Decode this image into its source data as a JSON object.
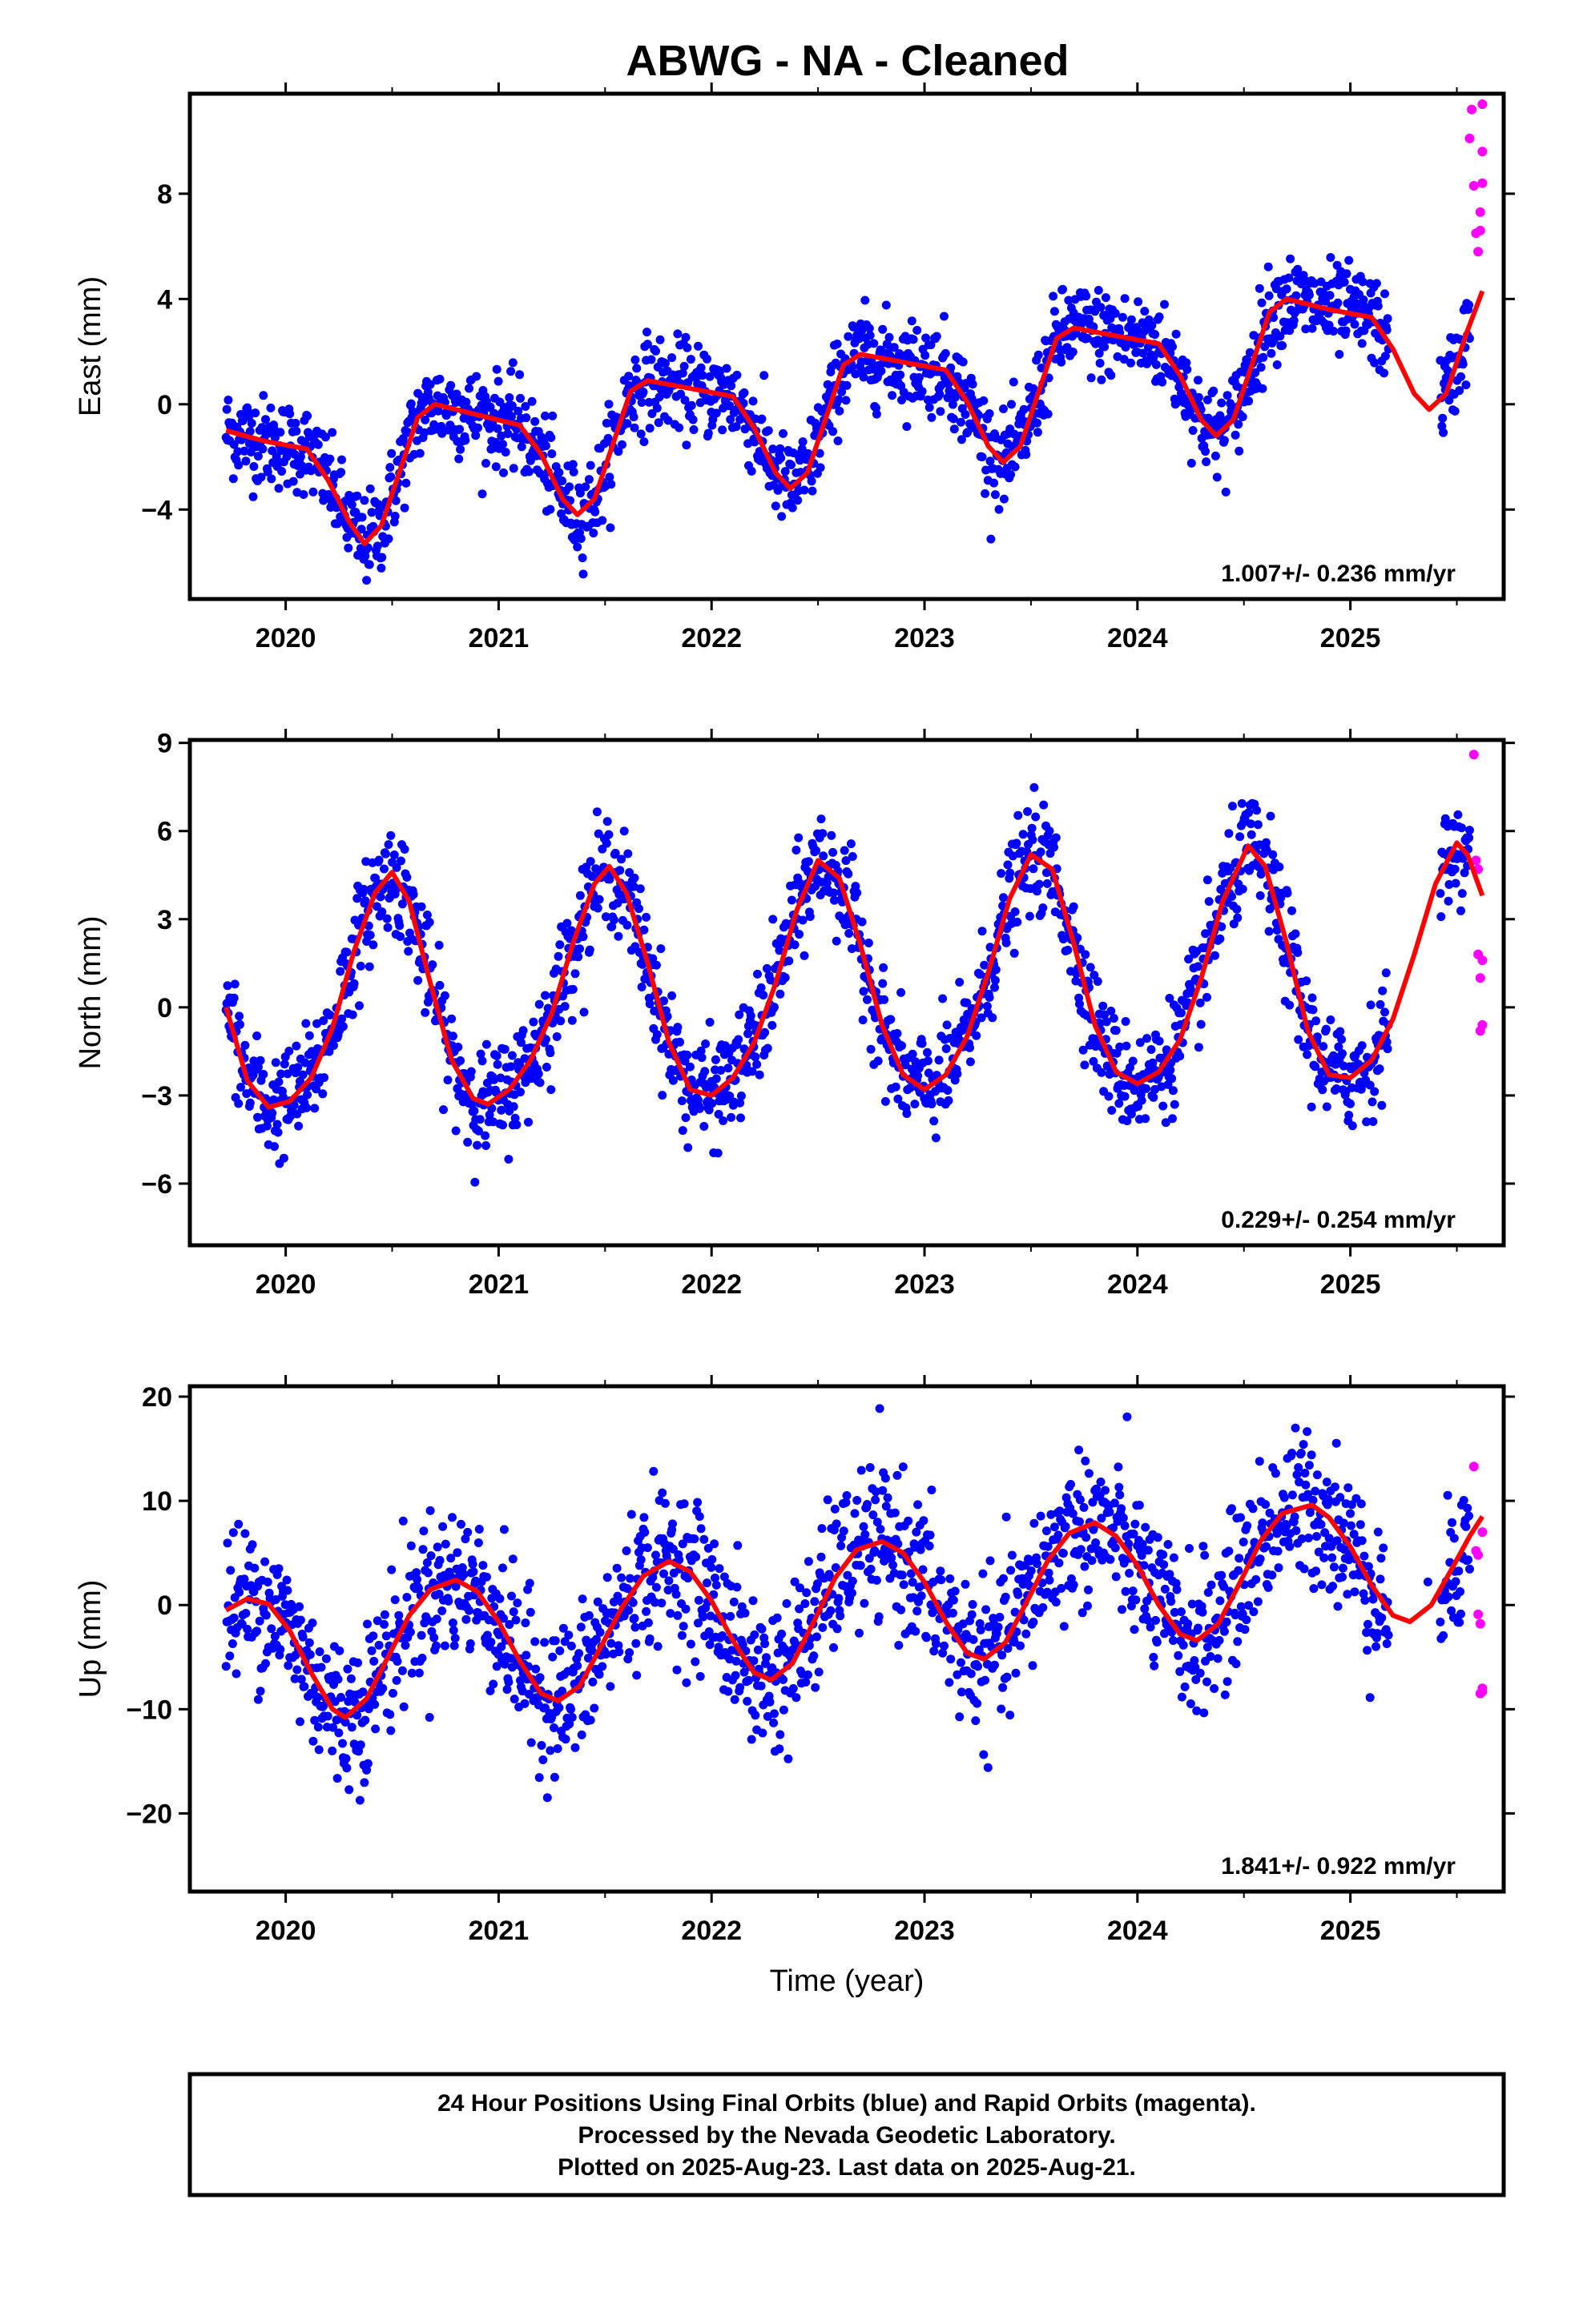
{
  "title": "ABWG  - NA - Cleaned",
  "colors": {
    "final": "#0000ff",
    "rapid": "#ff00ff",
    "model": "#ff0000",
    "frame": "#000000"
  },
  "footer": {
    "line1": "24 Hour Positions Using Final Orbits (blue) and Rapid Orbits (magenta).",
    "line2": "Processed by the Nevada Geodetic Laboratory.",
    "line3": "Plotted on 2025-Aug-23. Last data on 2025-Aug-21."
  },
  "chart_data": [
    {
      "type": "scatter",
      "component": "east",
      "ylabel": "East (mm)",
      "xlabel": "",
      "xlim": [
        2019.55,
        2025.72
      ],
      "ylim": [
        -7.4,
        11.8
      ],
      "xticks": [
        2020,
        2021,
        2022,
        2023,
        2024,
        2025
      ],
      "yticks": [
        -4,
        0,
        4,
        8
      ],
      "rate_label": "1.007+/- 0.236 mm/yr",
      "series": [
        {
          "name": "Final Orbits (blue)",
          "kind": "points",
          "color": "#0000ff",
          "data_start": 2019.72,
          "data_end": 2025.56,
          "noise_sd": 0.85
        },
        {
          "name": "Rapid Orbits (magenta)",
          "kind": "points",
          "color": "#ff00ff",
          "x": [
            2025.56,
            2025.57,
            2025.58,
            2025.59,
            2025.6,
            2025.61,
            2025.61,
            2025.62,
            2025.62,
            2025.62
          ],
          "y": [
            10.1,
            11.2,
            8.3,
            6.5,
            5.8,
            7.3,
            6.6,
            8.4,
            9.6,
            11.4
          ]
        },
        {
          "name": "Model fit",
          "kind": "line",
          "color": "#ff0000",
          "x": [
            2019.72,
            2019.9,
            2020.1,
            2020.2,
            2020.3,
            2020.37,
            2020.45,
            2020.55,
            2020.62,
            2020.7,
            2020.9,
            2021.1,
            2021.2,
            2021.3,
            2021.37,
            2021.45,
            2021.55,
            2021.62,
            2021.7,
            2021.9,
            2022.1,
            2022.2,
            2022.3,
            2022.37,
            2022.45,
            2022.55,
            2022.62,
            2022.7,
            2022.9,
            2023.1,
            2023.2,
            2023.3,
            2023.37,
            2023.45,
            2023.55,
            2023.62,
            2023.7,
            2023.9,
            2024.1,
            2024.2,
            2024.3,
            2024.37,
            2024.45,
            2024.55,
            2024.62,
            2024.7,
            2024.9,
            2025.1,
            2025.2,
            2025.3,
            2025.37,
            2025.45,
            2025.55,
            2025.62
          ],
          "y": [
            -1.0,
            -1.4,
            -1.7,
            -2.9,
            -4.5,
            -5.3,
            -4.6,
            -2.2,
            -0.5,
            0.0,
            -0.4,
            -0.8,
            -1.9,
            -3.6,
            -4.2,
            -3.6,
            -1.2,
            0.5,
            0.9,
            0.6,
            0.3,
            -0.9,
            -2.6,
            -3.2,
            -2.6,
            -0.2,
            1.5,
            1.9,
            1.6,
            1.3,
            0.1,
            -1.6,
            -2.2,
            -1.6,
            0.8,
            2.5,
            2.9,
            2.6,
            2.3,
            1.1,
            -0.6,
            -1.2,
            -0.6,
            1.8,
            3.5,
            4.0,
            3.6,
            3.3,
            2.1,
            0.4,
            -0.2,
            0.4,
            2.8,
            4.3
          ]
        }
      ]
    },
    {
      "type": "scatter",
      "component": "north",
      "ylabel": "North (mm)",
      "xlabel": "",
      "xlim": [
        2019.55,
        2025.72
      ],
      "ylim": [
        -8.1,
        9.1
      ],
      "xticks": [
        2020,
        2021,
        2022,
        2023,
        2024,
        2025
      ],
      "yticks": [
        -6,
        -3,
        0,
        3,
        6,
        9
      ],
      "rate_label": "0.229+/- 0.254 mm/yr",
      "series": [
        {
          "name": "Final Orbits (blue)",
          "kind": "points",
          "color": "#0000ff",
          "data_start": 2019.72,
          "data_end": 2025.56,
          "noise_sd": 0.9
        },
        {
          "name": "Rapid Orbits (magenta)",
          "kind": "points",
          "color": "#ff00ff",
          "x": [
            2025.58,
            2025.59,
            2025.6,
            2025.6,
            2025.61,
            2025.61,
            2025.62,
            2025.62
          ],
          "y": [
            8.6,
            5.0,
            4.7,
            1.8,
            1.0,
            -0.8,
            1.6,
            -0.6
          ]
        },
        {
          "name": "Model fit",
          "kind": "line",
          "color": "#ff0000",
          "x": [
            2019.72,
            2019.82,
            2019.92,
            2020.02,
            2020.12,
            2020.22,
            2020.32,
            2020.42,
            2020.5,
            2020.58,
            2020.68,
            2020.78,
            2020.88,
            2020.95,
            2021.05,
            2021.15,
            2021.25,
            2021.35,
            2021.45,
            2021.52,
            2021.6,
            2021.7,
            2021.8,
            2021.9,
            2022.0,
            2022.1,
            2022.2,
            2022.3,
            2022.4,
            2022.5,
            2022.6,
            2022.7,
            2022.8,
            2022.9,
            2023.0,
            2023.1,
            2023.2,
            2023.3,
            2023.4,
            2023.5,
            2023.6,
            2023.7,
            2023.8,
            2023.9,
            2024.0,
            2024.1,
            2024.2,
            2024.3,
            2024.4,
            2024.52,
            2024.6,
            2024.7,
            2024.8,
            2024.9,
            2025.0,
            2025.1,
            2025.2,
            2025.3,
            2025.4,
            2025.5,
            2025.55,
            2025.62
          ],
          "y": [
            0.0,
            -2.5,
            -3.4,
            -3.2,
            -2.4,
            -0.7,
            1.9,
            3.9,
            4.6,
            3.6,
            0.8,
            -1.8,
            -3.1,
            -3.3,
            -2.8,
            -1.8,
            -0.2,
            2.2,
            4.2,
            4.8,
            3.9,
            1.5,
            -1.2,
            -2.8,
            -3.0,
            -2.4,
            -1.2,
            0.8,
            3.3,
            5.0,
            4.4,
            2.1,
            -0.6,
            -2.3,
            -2.8,
            -2.3,
            -1.0,
            1.2,
            3.7,
            5.2,
            4.7,
            2.2,
            -0.6,
            -2.2,
            -2.6,
            -2.2,
            -1.1,
            1.0,
            3.6,
            5.5,
            4.8,
            2.2,
            -0.8,
            -2.3,
            -2.4,
            -1.8,
            -0.4,
            1.8,
            4.2,
            5.6,
            5.2,
            3.8
          ]
        }
      ]
    },
    {
      "type": "scatter",
      "component": "up",
      "ylabel": "Up (mm)",
      "xlabel": "Time (year)",
      "xlim": [
        2019.55,
        2025.72
      ],
      "ylim": [
        -27.5,
        21.0
      ],
      "xticks": [
        2020,
        2021,
        2022,
        2023,
        2024,
        2025
      ],
      "yticks": [
        -20,
        -10,
        0,
        10,
        20
      ],
      "rate_label": "1.841+/- 0.922 mm/yr",
      "series": [
        {
          "name": "Final Orbits (blue)",
          "kind": "points",
          "color": "#0000ff",
          "data_start": 2019.72,
          "data_end": 2025.56,
          "noise_sd": 3.6
        },
        {
          "name": "Rapid Orbits (magenta)",
          "kind": "points",
          "color": "#ff00ff",
          "x": [
            2025.58,
            2025.59,
            2025.6,
            2025.6,
            2025.61,
            2025.61,
            2025.62,
            2025.62,
            2025.62
          ],
          "y": [
            13.3,
            5.2,
            4.8,
            -0.9,
            -1.8,
            -8.5,
            -8.3,
            7.0,
            -8.0
          ]
        },
        {
          "name": "Model fit",
          "kind": "line",
          "color": "#ff0000",
          "x": [
            2019.72,
            2019.82,
            2019.92,
            2020.02,
            2020.12,
            2020.22,
            2020.28,
            2020.38,
            2020.48,
            2020.58,
            2020.68,
            2020.8,
            2020.9,
            2021.0,
            2021.1,
            2021.2,
            2021.28,
            2021.38,
            2021.48,
            2021.58,
            2021.68,
            2021.8,
            2021.9,
            2022.0,
            2022.1,
            2022.2,
            2022.28,
            2022.38,
            2022.48,
            2022.58,
            2022.68,
            2022.8,
            2022.9,
            2023.0,
            2023.1,
            2023.2,
            2023.28,
            2023.38,
            2023.48,
            2023.58,
            2023.68,
            2023.8,
            2023.9,
            2024.0,
            2024.1,
            2024.2,
            2024.28,
            2024.38,
            2024.48,
            2024.58,
            2024.68,
            2024.82,
            2024.9,
            2025.0,
            2025.1,
            2025.2,
            2025.28,
            2025.38,
            2025.48,
            2025.56,
            2025.62
          ],
          "y": [
            -0.5,
            0.6,
            0.1,
            -2.5,
            -6.5,
            -10.0,
            -10.8,
            -9.0,
            -5.0,
            -1.0,
            1.5,
            2.4,
            1.3,
            -1.6,
            -5.4,
            -8.5,
            -9.2,
            -7.8,
            -4.0,
            -0.2,
            2.8,
            4.2,
            3.2,
            0.4,
            -3.4,
            -6.5,
            -7.2,
            -5.6,
            -1.6,
            2.6,
            5.3,
            6.1,
            5.0,
            2.2,
            -1.6,
            -4.6,
            -5.2,
            -3.6,
            0.3,
            4.3,
            6.9,
            7.9,
            6.6,
            3.8,
            0.0,
            -2.8,
            -3.4,
            -1.8,
            2.1,
            6.2,
            8.8,
            9.6,
            8.4,
            5.6,
            1.9,
            -1.0,
            -1.6,
            0.0,
            3.6,
            6.6,
            8.5
          ]
        }
      ]
    }
  ]
}
